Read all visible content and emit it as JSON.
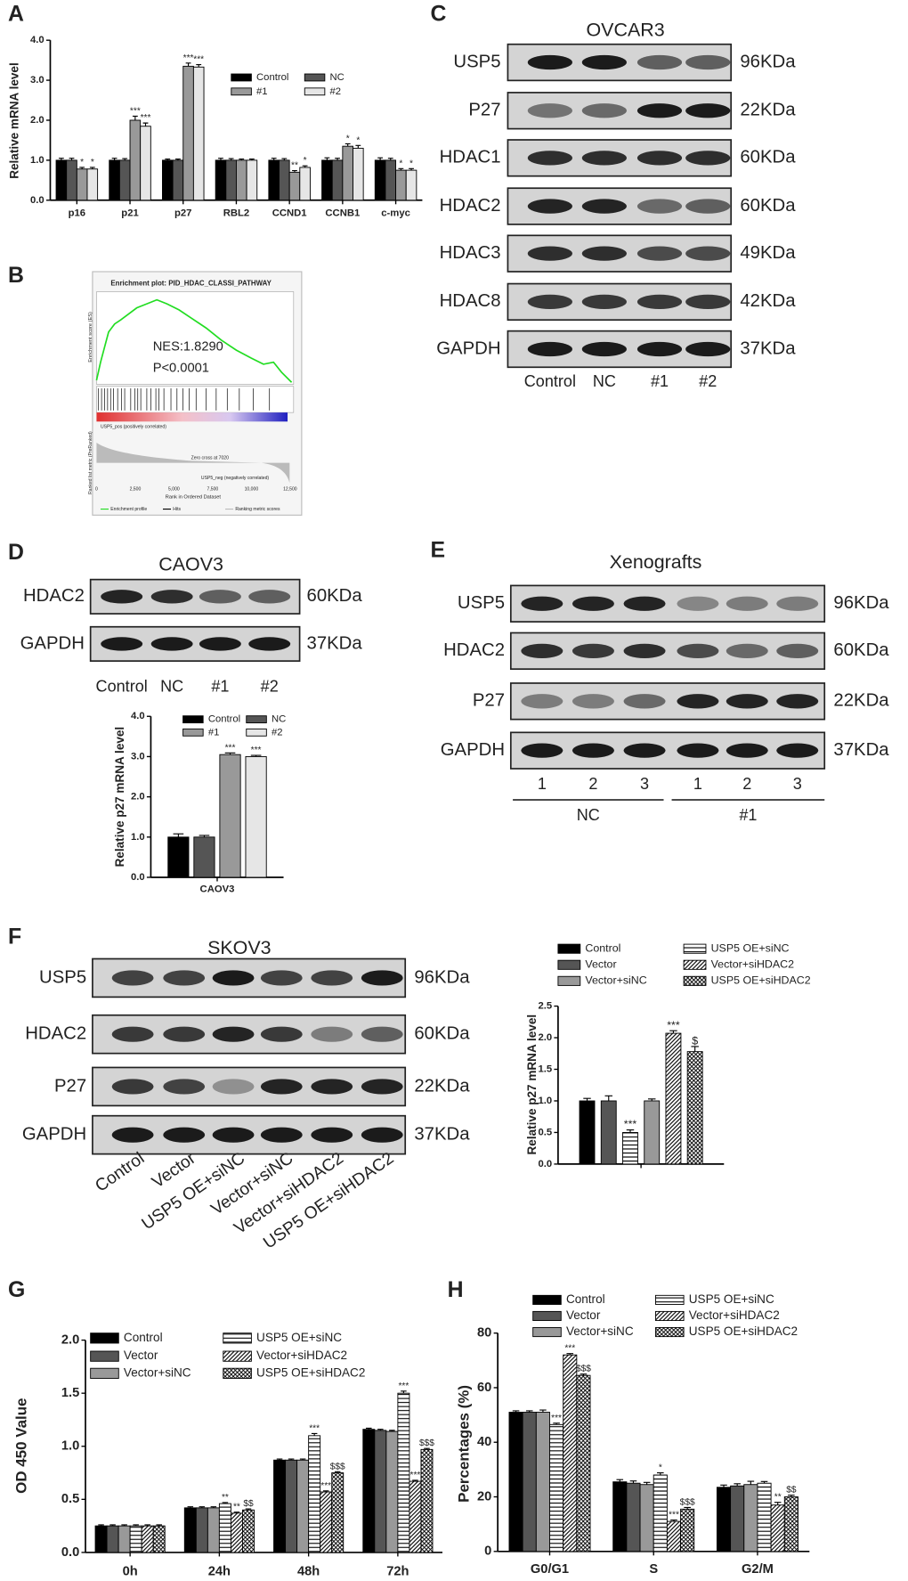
{
  "panel_labels": [
    "A",
    "B",
    "C",
    "D",
    "E",
    "F",
    "G",
    "H"
  ],
  "gsea": {
    "title": "Enrichment plot: PID_HDAC_CLASSI_PATHWAY",
    "nes": "NES:1.8290",
    "p": "P<0.0001",
    "ylabel_top": "Enrichment score (ES)",
    "ylabel_bottom": "Ranked list metric (PreRanked)",
    "xlabel": "Rank in Ordered Dataset",
    "pos_label": "USP5_pos (positively correlated)",
    "neg_label": "USP5_neg (negatively correlated)",
    "zero_cross": "Zero cross at 7020",
    "xticks": [
      "0",
      "2,500",
      "5,000",
      "7,500",
      "10,000",
      "12,500"
    ],
    "legend": [
      "Enrichment profile",
      "Hits",
      "Ranking metric scores"
    ]
  },
  "blots": [
    {
      "title": "OVCAR3",
      "proteins": [
        "USP5",
        "P27",
        "HDAC1",
        "HDAC2",
        "HDAC3",
        "HDAC8",
        "GAPDH"
      ],
      "sizes": [
        "96KDa",
        "22KDa",
        "60KDa",
        "60KDa",
        "49KDa",
        "42KDa",
        "37KDa"
      ],
      "lanes": [
        "Control",
        "NC",
        "#1",
        "#2"
      ]
    },
    {
      "title": "CAOV3",
      "proteins": [
        "HDAC2",
        "GAPDH"
      ],
      "sizes": [
        "60KDa",
        "37KDa"
      ],
      "lanes": [
        "Control",
        "NC",
        "#1",
        "#2"
      ]
    },
    {
      "title": "Xenografts",
      "proteins": [
        "USP5",
        "HDAC2",
        "P27",
        "GAPDH"
      ],
      "sizes": [
        "96KDa",
        "60KDa",
        "22KDa",
        "37KDa"
      ],
      "lanes": [
        1,
        2,
        3,
        1,
        2,
        3
      ],
      "groups": [
        "NC",
        "#1"
      ]
    },
    {
      "title": "SKOV3",
      "proteins": [
        "USP5",
        "HDAC2",
        "P27",
        "GAPDH"
      ],
      "sizes": [
        "96KDa",
        "60KDa",
        "22KDa",
        "37KDa"
      ],
      "lanes": [
        "Control",
        "Vector",
        "USP5 OE+siNC",
        "Vector+siNC",
        "Vector+siHDAC2",
        "USP5 OE+siHDAC2"
      ]
    }
  ],
  "chart_data": [
    {
      "type": "bar",
      "ylabel": "Relative mRNA level",
      "categories": [
        "p16",
        "p21",
        "p27",
        "RBL2",
        "CCND1",
        "CCNB1",
        "c-myc"
      ],
      "series": [
        {
          "name": "Control",
          "color": "#000000",
          "values": [
            1,
            1,
            1,
            1,
            1,
            1,
            1
          ],
          "errors": [
            0.05,
            0.05,
            0.03,
            0.05,
            0.05,
            0.06,
            0.06
          ]
        },
        {
          "name": "NC",
          "color": "#555555",
          "values": [
            1,
            1,
            1,
            1,
            1,
            1,
            1
          ],
          "errors": [
            0.05,
            0.04,
            0.03,
            0.04,
            0.04,
            0.05,
            0.05
          ]
        },
        {
          "name": "#1",
          "color": "#999999",
          "values": [
            0.78,
            2.0,
            3.35,
            1.0,
            0.7,
            1.35,
            0.75
          ],
          "errors": [
            0.04,
            0.1,
            0.08,
            0.03,
            0.04,
            0.06,
            0.04
          ],
          "annotations": [
            "*",
            "***",
            "***",
            null,
            "**",
            "*",
            "*"
          ]
        },
        {
          "name": "#2",
          "color": "#e6e6e6",
          "values": [
            0.78,
            1.85,
            3.33,
            1.0,
            0.82,
            1.3,
            0.75
          ],
          "errors": [
            0.04,
            0.08,
            0.06,
            0.03,
            0.04,
            0.07,
            0.04
          ],
          "annotations": [
            "*",
            "***",
            "***",
            null,
            "*",
            "*",
            "*"
          ]
        }
      ],
      "ylim": [
        0,
        4
      ],
      "yticks": [
        {
          "value": 0,
          "label": "0.0"
        },
        {
          "value": 1,
          "label": "1.0"
        },
        {
          "value": 2,
          "label": "2.0"
        },
        {
          "value": 3,
          "label": "3.0"
        },
        {
          "value": 4,
          "label": "4.0"
        }
      ]
    },
    {
      "type": "bar",
      "ylabel": "Relative p27 mRNA level",
      "categories": [
        "CAOV3"
      ],
      "series": [
        {
          "name": "Control",
          "color": "#000000",
          "values": [
            1.0
          ],
          "errors": [
            0.08
          ]
        },
        {
          "name": "NC",
          "color": "#555555",
          "values": [
            1.0
          ],
          "errors": [
            0.04
          ]
        },
        {
          "name": "#1",
          "color": "#999999",
          "values": [
            3.05
          ],
          "errors": [
            0.04
          ],
          "annotations": [
            "***"
          ]
        },
        {
          "name": "#2",
          "color": "#e6e6e6",
          "values": [
            3.0
          ],
          "errors": [
            0.03
          ],
          "annotations": [
            "***"
          ]
        }
      ],
      "ylim": [
        0,
        4
      ],
      "yticks": [
        {
          "value": 0,
          "label": "0.0"
        },
        {
          "value": 1,
          "label": "1.0"
        },
        {
          "value": 2,
          "label": "2.0"
        },
        {
          "value": 3,
          "label": "3.0"
        },
        {
          "value": 4,
          "label": "4.0"
        }
      ]
    },
    {
      "type": "bar",
      "ylabel": "Relative p27 mRNA level",
      "categories": [
        null
      ],
      "series": [
        {
          "name": "Control",
          "color": "#000000",
          "values": [
            1.0
          ],
          "errors": [
            0.04
          ]
        },
        {
          "name": "Vector",
          "color": "#555555",
          "values": [
            1.0
          ],
          "errors": [
            0.08
          ]
        },
        {
          "name": "USP5 OE+siNC",
          "color": "#ffffff",
          "pattern": "horizontal",
          "values": [
            0.5
          ],
          "errors": [
            0.04
          ],
          "annotations": [
            "***"
          ]
        },
        {
          "name": "Vector+siNC",
          "color": "#999999",
          "values": [
            1.0
          ],
          "errors": [
            0.03
          ]
        },
        {
          "name": "Vector+siHDAC2",
          "color": "#ffffff",
          "pattern": "diagonal",
          "values": [
            2.07
          ],
          "errors": [
            0.04
          ],
          "annotations": [
            "***"
          ]
        },
        {
          "name": "USP5 OE+siHDAC2",
          "color": "#ffffff",
          "pattern": "cross",
          "values": [
            1.78
          ],
          "errors": [
            0.08
          ],
          "annotations": [
            "$"
          ]
        }
      ],
      "ylim": [
        0,
        2.5
      ],
      "yticks": [
        {
          "value": 0,
          "label": "0.0"
        },
        {
          "value": 0.5,
          "label": "0.5"
        },
        {
          "value": 1,
          "label": "1.0"
        },
        {
          "value": 1.5,
          "label": "1.5"
        },
        {
          "value": 2,
          "label": "2.0"
        },
        {
          "value": 2.5,
          "label": "2.5"
        }
      ]
    },
    {
      "type": "bar",
      "ylabel": "OD 450 Value",
      "categories": [
        "0h",
        "24h",
        "48h",
        "72h"
      ],
      "series": [
        {
          "name": "Control",
          "color": "#000000",
          "values": [
            0.25,
            0.42,
            0.87,
            1.16
          ],
          "errors": [
            0.01,
            0.01,
            0.01,
            0.01
          ]
        },
        {
          "name": "Vector",
          "color": "#555555",
          "values": [
            0.25,
            0.42,
            0.87,
            1.15
          ],
          "errors": [
            0.01,
            0.01,
            0.01,
            0.01
          ]
        },
        {
          "name": "Vector+siNC",
          "color": "#999999",
          "values": [
            0.25,
            0.42,
            0.87,
            1.14
          ],
          "errors": [
            0.01,
            0.01,
            0.01,
            0.01
          ]
        },
        {
          "name": "USP5 OE+siNC",
          "color": "#ffffff",
          "pattern": "horizontal",
          "values": [
            0.25,
            0.46,
            1.1,
            1.5
          ],
          "errors": [
            0.01,
            0.01,
            0.02,
            0.02
          ],
          "annotations": [
            null,
            "**",
            "***",
            "***"
          ]
        },
        {
          "name": "Vector+siHDAC2",
          "color": "#ffffff",
          "pattern": "diagonal",
          "values": [
            0.25,
            0.37,
            0.57,
            0.67
          ],
          "errors": [
            0.01,
            0.01,
            0.01,
            0.01
          ],
          "annotations": [
            null,
            "**",
            "***",
            "***"
          ]
        },
        {
          "name": "USP5 OE+siHDAC2",
          "color": "#ffffff",
          "pattern": "cross",
          "values": [
            0.25,
            0.4,
            0.75,
            0.97
          ],
          "errors": [
            0.01,
            0.01,
            0.01,
            0.01
          ],
          "annotations": [
            null,
            "$$",
            "$$$",
            "$$$"
          ]
        }
      ],
      "ylim": [
        0,
        2
      ],
      "yticks": [
        {
          "value": 0,
          "label": "0.0"
        },
        {
          "value": 0.5,
          "label": "0.5"
        },
        {
          "value": 1,
          "label": "1.0"
        },
        {
          "value": 1.5,
          "label": "1.5"
        },
        {
          "value": 2,
          "label": "2.0"
        }
      ]
    },
    {
      "type": "bar",
      "ylabel": "Percentages (%)",
      "categories": [
        "G0/G1",
        "S",
        "G2/M"
      ],
      "series": [
        {
          "name": "Control",
          "color": "#000000",
          "values": [
            51,
            25.5,
            23.5
          ],
          "errors": [
            0.5,
            0.8,
            0.8
          ]
        },
        {
          "name": "Vector",
          "color": "#555555",
          "values": [
            51,
            25,
            24
          ],
          "errors": [
            0.5,
            0.8,
            0.8
          ]
        },
        {
          "name": "Vector+siNC",
          "color": "#999999",
          "values": [
            51,
            24.5,
            24.5
          ],
          "errors": [
            0.8,
            0.8,
            1.2
          ]
        },
        {
          "name": "USP5 OE+siNC",
          "color": "#ffffff",
          "pattern": "horizontal",
          "values": [
            46.5,
            28,
            25
          ],
          "errors": [
            0.5,
            0.8,
            0.6
          ],
          "annotations": [
            "***",
            "*",
            null
          ]
        },
        {
          "name": "Vector+siHDAC2",
          "color": "#ffffff",
          "pattern": "diagonal",
          "values": [
            72,
            11,
            17
          ],
          "errors": [
            0.5,
            0.5,
            1.0
          ],
          "annotations": [
            "***",
            "***",
            "**"
          ]
        },
        {
          "name": "USP5 OE+siHDAC2",
          "color": "#ffffff",
          "pattern": "cross",
          "values": [
            64.5,
            15.5,
            20
          ],
          "errors": [
            0.5,
            0.6,
            0.6
          ],
          "annotations": [
            "$$$",
            "$$$",
            "$$"
          ]
        }
      ],
      "ylim": [
        0,
        80
      ],
      "yticks": [
        0,
        20,
        40,
        60,
        80
      ]
    }
  ]
}
